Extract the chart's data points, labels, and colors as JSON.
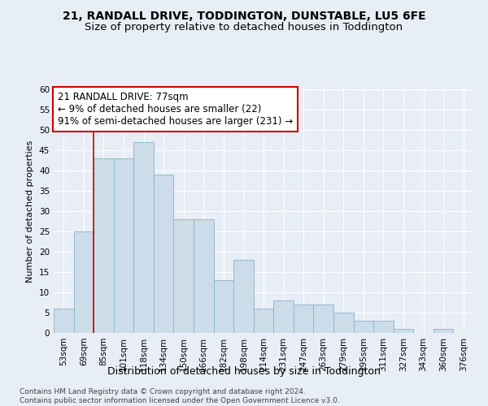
{
  "title": "21, RANDALL DRIVE, TODDINGTON, DUNSTABLE, LU5 6FE",
  "subtitle": "Size of property relative to detached houses in Toddington",
  "xlabel": "Distribution of detached houses by size in Toddington",
  "ylabel": "Number of detached properties",
  "categories": [
    "53sqm",
    "69sqm",
    "85sqm",
    "101sqm",
    "118sqm",
    "134sqm",
    "150sqm",
    "166sqm",
    "182sqm",
    "198sqm",
    "214sqm",
    "231sqm",
    "247sqm",
    "263sqm",
    "279sqm",
    "295sqm",
    "311sqm",
    "327sqm",
    "343sqm",
    "360sqm",
    "376sqm"
  ],
  "values": [
    6,
    25,
    43,
    43,
    47,
    39,
    28,
    28,
    13,
    18,
    6,
    8,
    7,
    7,
    5,
    3,
    3,
    1,
    0,
    1,
    0
  ],
  "bar_color": "#ccdce8",
  "bar_edge_color": "#88b4cc",
  "background_color": "#e8eef5",
  "grid_color": "#ffffff",
  "property_line_color": "#cc0000",
  "property_line_x": 1.5,
  "annotation_line1": "21 RANDALL DRIVE: 77sqm",
  "annotation_line2": "← 9% of detached houses are smaller (22)",
  "annotation_line3": "91% of semi-detached houses are larger (231) →",
  "annotation_box_color": "#ffffff",
  "annotation_box_edge_color": "#cc0000",
  "ylim": [
    0,
    60
  ],
  "yticks": [
    0,
    5,
    10,
    15,
    20,
    25,
    30,
    35,
    40,
    45,
    50,
    55,
    60
  ],
  "footer_text": "Contains HM Land Registry data © Crown copyright and database right 2024.\nContains public sector information licensed under the Open Government Licence v3.0.",
  "title_fontsize": 10,
  "subtitle_fontsize": 9.5,
  "xlabel_fontsize": 9,
  "ylabel_fontsize": 8,
  "tick_fontsize": 7.5,
  "annotation_fontsize": 8.5,
  "footer_fontsize": 6.5
}
